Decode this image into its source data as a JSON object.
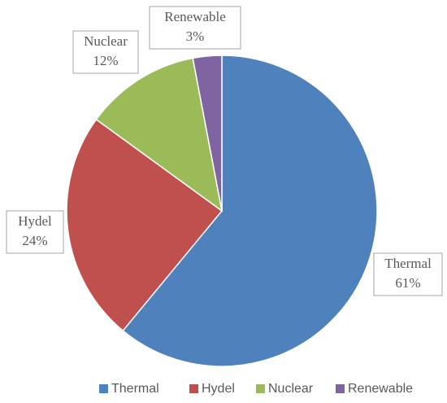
{
  "chart_data": {
    "type": "pie",
    "categories": [
      "Thermal",
      "Hydel",
      "Nuclear",
      "Renewable"
    ],
    "values": [
      61,
      24,
      12,
      3
    ],
    "value_labels": [
      "61%",
      "24%",
      "12%",
      "3%"
    ],
    "colors": [
      "#4f81bd",
      "#c0504d",
      "#9bbb59",
      "#8064a2"
    ],
    "legend": "bottom"
  }
}
